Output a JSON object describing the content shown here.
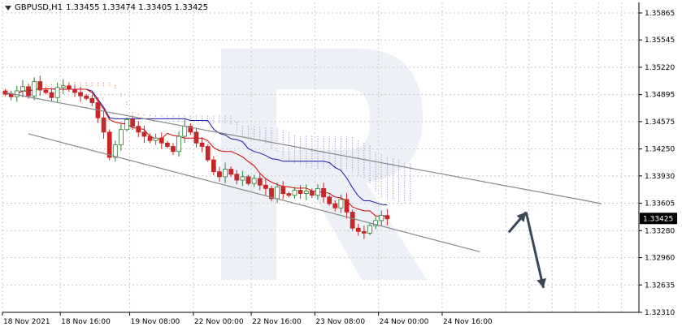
{
  "header": {
    "symbol": "GBPUSD,H1",
    "ohlc": "1.33455 1.33474 1.33405 1.33425"
  },
  "colors": {
    "background": "#ffffff",
    "grid": "#c8c8c8",
    "candle_bull": "#2e7d32",
    "candle_bear": "#c62828",
    "tenkan": "#d50000",
    "kijun": "#1a1aa6",
    "cloud_a": "#e07b39",
    "cloud_b": "#9b8fd6",
    "channel": "#888888",
    "forecast_arrow": "#3b4756",
    "price_tag_bg": "#000000",
    "watermark": "#dfe6f0"
  },
  "chart_data": {
    "type": "candlestick",
    "instrument": "GBPUSD",
    "timeframe": "H1",
    "current_price": "1.33425",
    "y_ticks": [
      "1.35865",
      "1.35545",
      "1.35220",
      "1.34895",
      "1.34575",
      "1.34250",
      "1.33930",
      "1.33605",
      "1.33280",
      "1.32960",
      "1.32635",
      "1.32310"
    ],
    "ylim": [
      1.3231,
      1.3599
    ],
    "x_ticks": [
      "18 Nov 2021",
      "18 Nov 16:00",
      "19 Nov 08:00",
      "22 Nov 00:00",
      "22 Nov 16:00",
      "23 Nov 08:00",
      "24 Nov 00:00",
      "24 Nov 16:00"
    ],
    "closes": [
      1.349,
      1.3487,
      1.3494,
      1.3499,
      1.3488,
      1.3505,
      1.3495,
      1.3492,
      1.3486,
      1.3498,
      1.35,
      1.3496,
      1.3492,
      1.3488,
      1.3485,
      1.348,
      1.3462,
      1.3445,
      1.3415,
      1.343,
      1.3448,
      1.346,
      1.3452,
      1.3445,
      1.344,
      1.3435,
      1.3438,
      1.3432,
      1.3428,
      1.3422,
      1.344,
      1.3452,
      1.3445,
      1.3432,
      1.3428,
      1.3412,
      1.3398,
      1.3392,
      1.3401,
      1.3395,
      1.3388,
      1.3392,
      1.3384,
      1.339,
      1.3382,
      1.3378,
      1.3366,
      1.338,
      1.3372,
      1.337,
      1.3376,
      1.3372,
      1.3375,
      1.337,
      1.3378,
      1.3368,
      1.336,
      1.3355,
      1.3365,
      1.335,
      1.3331,
      1.3327,
      1.3325,
      1.3334,
      1.334,
      1.3346,
      1.3342
    ],
    "channel": {
      "upper": [
        [
          0,
          1.3492
        ],
        [
          20,
          1.3466
        ],
        [
          100,
          1.3364
        ],
        [
          103,
          1.336
        ]
      ],
      "lower": [
        [
          4,
          1.3443
        ],
        [
          82,
          1.3303
        ]
      ]
    },
    "forecast_arrows": [
      {
        "from": [
          87,
          1.3326
        ],
        "to": [
          90,
          1.335
        ]
      },
      {
        "from": [
          90,
          1.335
        ],
        "to": [
          93,
          1.326
        ]
      }
    ]
  }
}
